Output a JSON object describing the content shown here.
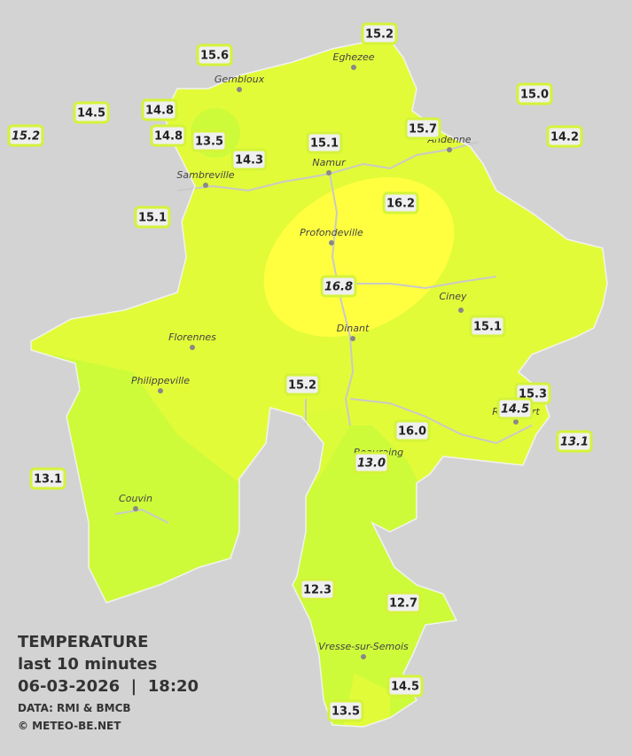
{
  "cities": [
    "Eghezee",
    "Gembloux",
    "Andenne",
    "Namur",
    "Sambreville",
    "Profondeville",
    "Ciney",
    "Dinant",
    "Florennes",
    "Philippeville",
    "Beauraing",
    "Rochefort",
    "Couvin",
    "Vresse-sur-Semois"
  ],
  "stations": [
    {
      "label": "15.2"
    },
    {
      "label": "15.6"
    },
    {
      "label": "15.0"
    },
    {
      "label": "14.5"
    },
    {
      "label": "14.8"
    },
    {
      "label": "15.2",
      "italic": true
    },
    {
      "label": "14.8"
    },
    {
      "label": "13.5"
    },
    {
      "label": "14.2"
    },
    {
      "label": "15.7"
    },
    {
      "label": "15.1"
    },
    {
      "label": "14.3"
    },
    {
      "label": "16.2"
    },
    {
      "label": "15.1"
    },
    {
      "label": "16.8",
      "italic": true
    },
    {
      "label": "15.1"
    },
    {
      "label": "15.2"
    },
    {
      "label": "15.3"
    },
    {
      "label": "14.5",
      "italic": true
    },
    {
      "label": "16.0"
    },
    {
      "label": "13.1",
      "italic": true
    },
    {
      "label": "13.0",
      "italic": true
    },
    {
      "label": "13.1"
    },
    {
      "label": "12.3"
    },
    {
      "label": "12.7"
    },
    {
      "label": "14.5"
    },
    {
      "label": "13.5"
    }
  ],
  "legend": {
    "title": "TEMPERATURE",
    "subtitle": "last 10 minutes",
    "datetime": "06-03-2026  |  18:20",
    "source": "DATA: RMI & BMCB",
    "copyright": "© METEO-BE.NET"
  }
}
